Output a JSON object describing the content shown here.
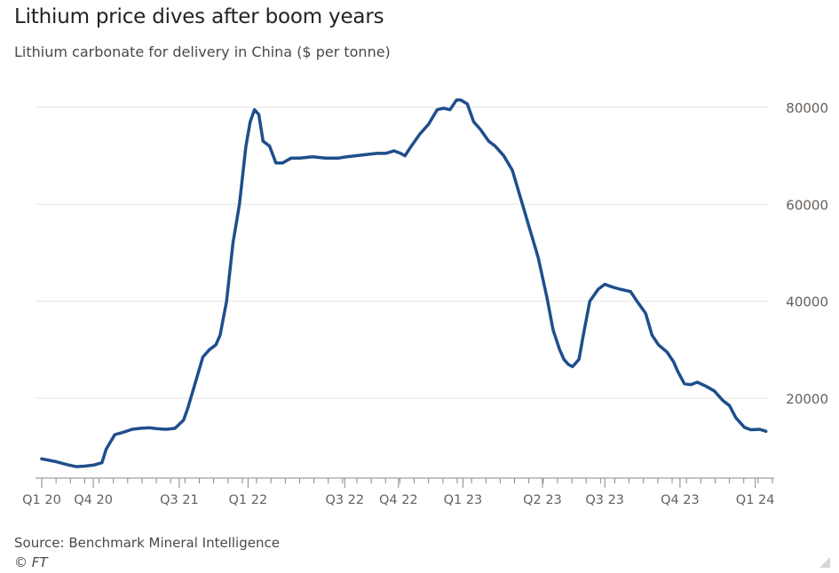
{
  "header": {
    "title": "Lithium price dives after boom years",
    "subtitle": "Lithium carbonate for delivery in China ($ per tonne)"
  },
  "footer": {
    "source": "Source: Benchmark Mineral Intelligence",
    "credit": "© FT"
  },
  "colors": {
    "line": "#1f4e8c",
    "grid": "#e6e3df",
    "axis": "#8c8782",
    "text": "#66605c"
  },
  "chart_data": {
    "type": "line",
    "title": "Lithium price dives after boom years",
    "subtitle": "Lithium carbonate for delivery in China ($ per tonne)",
    "xlabel": "",
    "ylabel": "",
    "y_axis_side": "right",
    "ylim": [
      5000,
      82000
    ],
    "xlim": [
      0,
      17
    ],
    "grid": true,
    "legend": "none",
    "y_ticks": [
      20000,
      40000,
      60000,
      80000
    ],
    "y_tick_labels": [
      "20000",
      "40000",
      "60000",
      "80000"
    ],
    "x_ticks": [
      {
        "label": "Q1 20",
        "x": 0
      },
      {
        "label": "Q4 20",
        "x": 1.2
      },
      {
        "label": "Q3 21",
        "x": 3.2
      },
      {
        "label": "Q1 22",
        "x": 4.8
      },
      {
        "label": "Q3 22",
        "x": 7.05
      },
      {
        "label": "Q4 22",
        "x": 8.3
      },
      {
        "label": "Q1 23",
        "x": 9.8
      },
      {
        "label": "Q2 23",
        "x": 11.65
      },
      {
        "label": "Q3 23",
        "x": 13.1
      },
      {
        "label": "Q4 23",
        "x": 14.85
      },
      {
        "label": "Q1 24",
        "x": 16.6
      }
    ],
    "series": [
      {
        "name": "",
        "x": [
          0.0,
          0.3,
          0.6,
          0.8,
          1.0,
          1.2,
          1.4,
          1.5,
          1.7,
          1.9,
          2.1,
          2.3,
          2.5,
          2.7,
          2.9,
          3.1,
          3.3,
          3.4,
          3.6,
          3.75,
          3.9,
          4.05,
          4.15,
          4.3,
          4.45,
          4.6,
          4.75,
          4.85,
          4.95,
          5.05,
          5.15,
          5.3,
          5.45,
          5.6,
          5.8,
          6.0,
          6.3,
          6.6,
          6.9,
          7.1,
          7.5,
          7.8,
          8.0,
          8.2,
          8.35,
          8.45,
          8.6,
          8.8,
          9.0,
          9.2,
          9.35,
          9.5,
          9.65,
          9.75,
          9.9,
          10.05,
          10.2,
          10.4,
          10.55,
          10.75,
          10.95,
          11.15,
          11.35,
          11.55,
          11.75,
          11.9,
          12.05,
          12.15,
          12.25,
          12.35,
          12.5,
          12.6,
          12.75,
          12.95,
          13.1,
          13.25,
          13.45,
          13.7,
          13.85,
          14.05,
          14.2,
          14.35,
          14.55,
          14.7,
          14.8,
          14.95,
          15.1,
          15.25,
          15.45,
          15.65,
          15.85,
          16.0,
          16.15,
          16.35,
          16.5,
          16.7,
          16.85
        ],
        "y": [
          7500,
          7000,
          6300,
          5900,
          6000,
          6200,
          6700,
          9500,
          12500,
          13000,
          13600,
          13800,
          13900,
          13700,
          13600,
          13800,
          15500,
          18000,
          24000,
          28500,
          30000,
          31000,
          33000,
          40000,
          52000,
          60000,
          72000,
          77000,
          79500,
          78500,
          73000,
          72000,
          68500,
          68500,
          69500,
          69500,
          69800,
          69500,
          69500,
          69800,
          70200,
          70500,
          70500,
          71000,
          70500,
          70000,
          72000,
          74500,
          76500,
          79500,
          79800,
          79500,
          81500,
          81500,
          80700,
          77000,
          75500,
          73000,
          72000,
          70000,
          67000,
          61000,
          55000,
          49000,
          41000,
          34000,
          30000,
          28000,
          27000,
          26500,
          28000,
          33000,
          40000,
          42500,
          43500,
          43000,
          42500,
          42000,
          40000,
          37500,
          33000,
          31000,
          29500,
          27500,
          25500,
          23000,
          22800,
          23300,
          22500,
          21500,
          19500,
          18500,
          16000,
          14000,
          13500,
          13600,
          13200
        ]
      }
    ]
  }
}
